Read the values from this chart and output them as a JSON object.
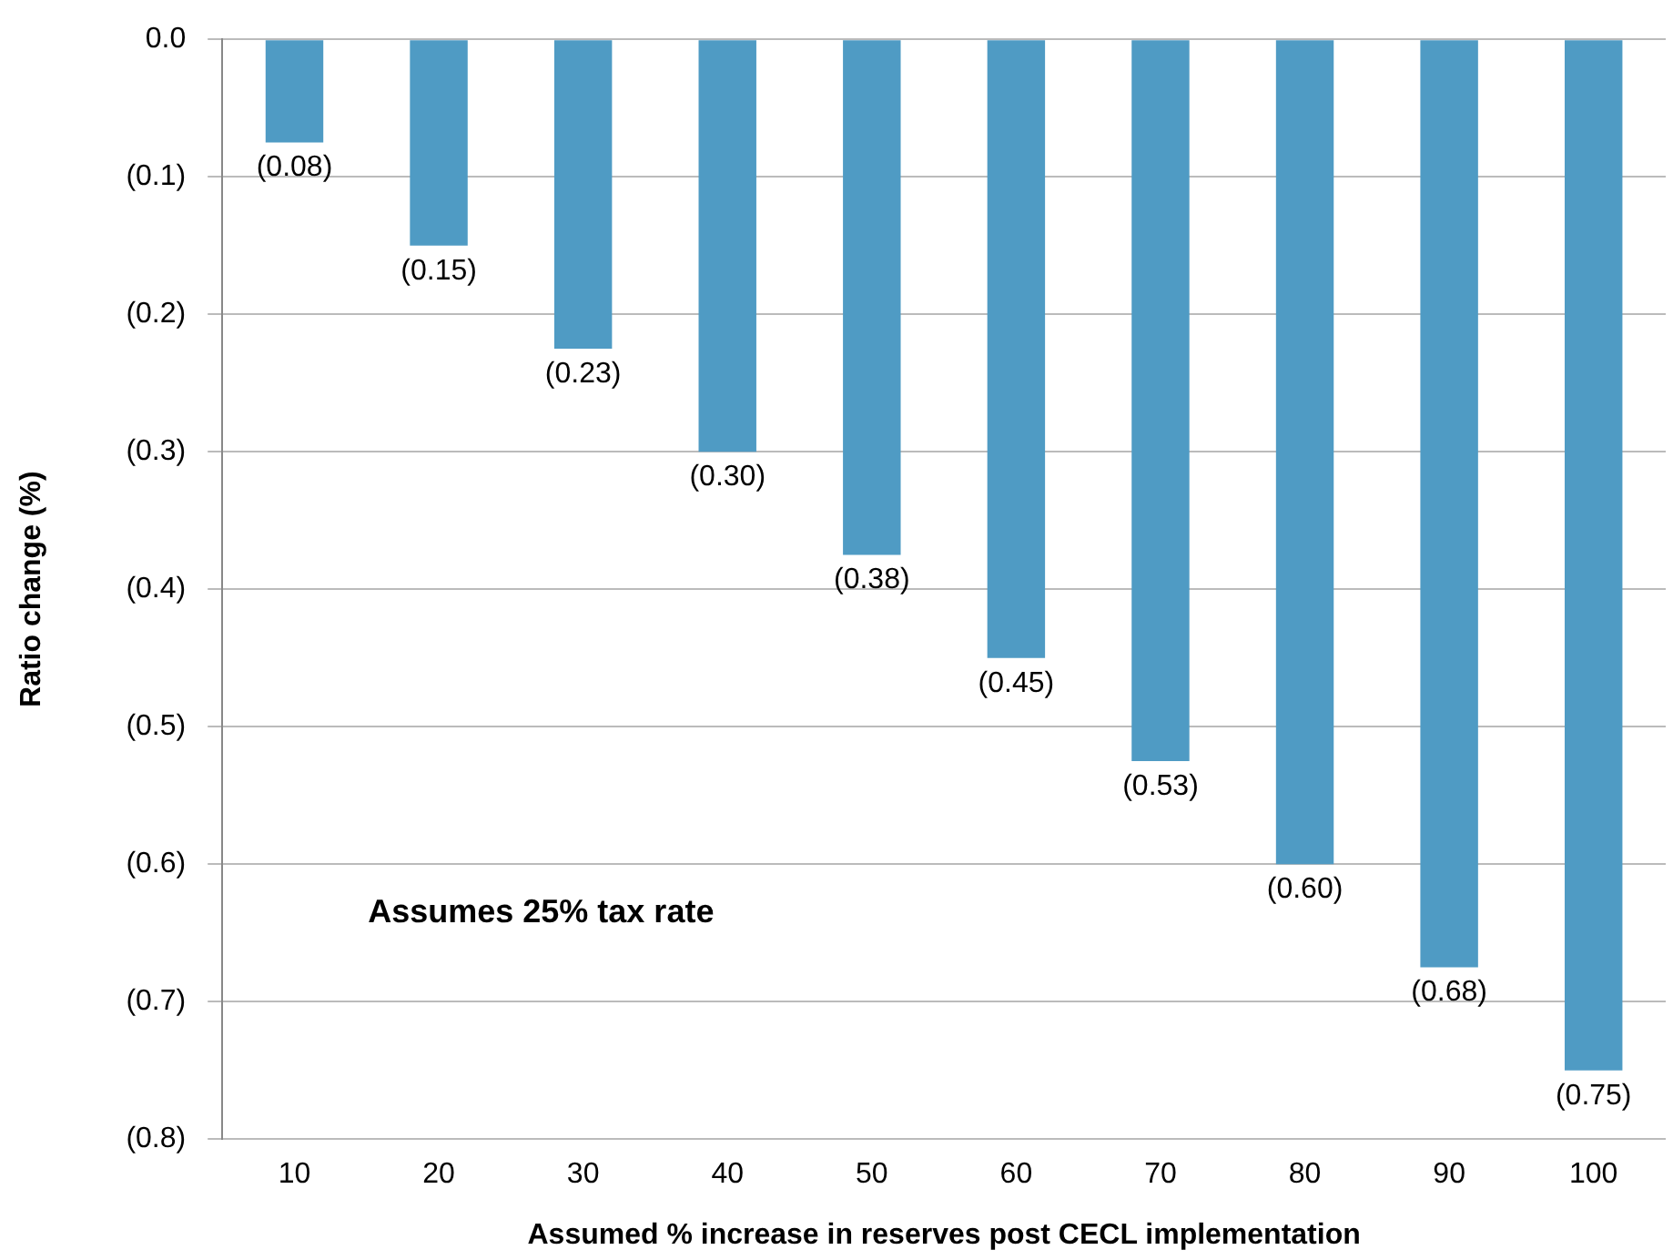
{
  "chart_data": {
    "type": "bar",
    "xlabel": "Assumed % increase in reserves post CECL implementation",
    "ylabel": "Ratio change (%)",
    "categories": [
      "10",
      "20",
      "30",
      "40",
      "50",
      "60",
      "70",
      "80",
      "90",
      "100"
    ],
    "values": [
      -0.075,
      -0.15,
      -0.225,
      -0.3,
      -0.375,
      -0.45,
      -0.525,
      -0.6,
      -0.675,
      -0.75
    ],
    "value_labels": [
      "(0.08)",
      "(0.15)",
      "(0.23)",
      "(0.30)",
      "(0.38)",
      "(0.45)",
      "(0.53)",
      "(0.60)",
      "(0.68)",
      "(0.75)"
    ],
    "color": "#4f9bc4",
    "ylim": [
      -0.8,
      0
    ],
    "yticks": [
      {
        "value": 0,
        "label": "0.0"
      },
      {
        "value": -0.1,
        "label": "(0.1)"
      },
      {
        "value": -0.2,
        "label": "(0.2)"
      },
      {
        "value": -0.3,
        "label": "(0.3)"
      },
      {
        "value": -0.4,
        "label": "(0.4)"
      },
      {
        "value": -0.5,
        "label": "(0.5)"
      },
      {
        "value": -0.6,
        "label": "(0.6)"
      },
      {
        "value": -0.7,
        "label": "(0.7)"
      },
      {
        "value": -0.8,
        "label": "(0.8)"
      }
    ],
    "grid": "y",
    "legend": false,
    "annotations": [
      "Assumes 25% tax rate"
    ]
  }
}
